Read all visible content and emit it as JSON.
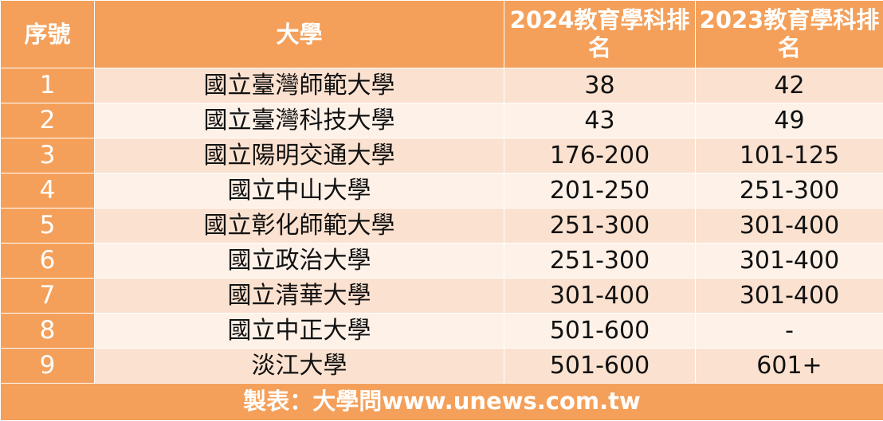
{
  "table": {
    "headers": {
      "index": "序號",
      "university": "大學",
      "rank_2024": "2024教育學科排名",
      "rank_2023": "2023教育學科排名"
    },
    "rows": [
      {
        "index": "1",
        "university": "國立臺灣師範大學",
        "rank_2024": "38",
        "rank_2023": "42"
      },
      {
        "index": "2",
        "university": "國立臺灣科技大學",
        "rank_2024": "43",
        "rank_2023": "49"
      },
      {
        "index": "3",
        "university": "國立陽明交通大學",
        "rank_2024": "176-200",
        "rank_2023": "101-125"
      },
      {
        "index": "4",
        "university": "國立中山大學",
        "rank_2024": "201-250",
        "rank_2023": "251-300"
      },
      {
        "index": "5",
        "university": "國立彰化師範大學",
        "rank_2024": "251-300",
        "rank_2023": "301-400"
      },
      {
        "index": "6",
        "university": "國立政治大學",
        "rank_2024": "251-300",
        "rank_2023": "301-400"
      },
      {
        "index": "7",
        "university": "國立清華大學",
        "rank_2024": "301-400",
        "rank_2023": "301-400"
      },
      {
        "index": "8",
        "university": "國立中正大學",
        "rank_2024": "501-600",
        "rank_2023": "-"
      },
      {
        "index": "9",
        "university": "淡江大學",
        "rank_2024": "501-600",
        "rank_2023": "601+"
      }
    ],
    "footer": "製表：大學問www.unews.com.tw"
  },
  "colors": {
    "header_bg": "#f4a05a",
    "row_odd_bg": "#fbe1cf",
    "row_even_bg": "#fdf1e8",
    "header_text": "#ffffff"
  }
}
